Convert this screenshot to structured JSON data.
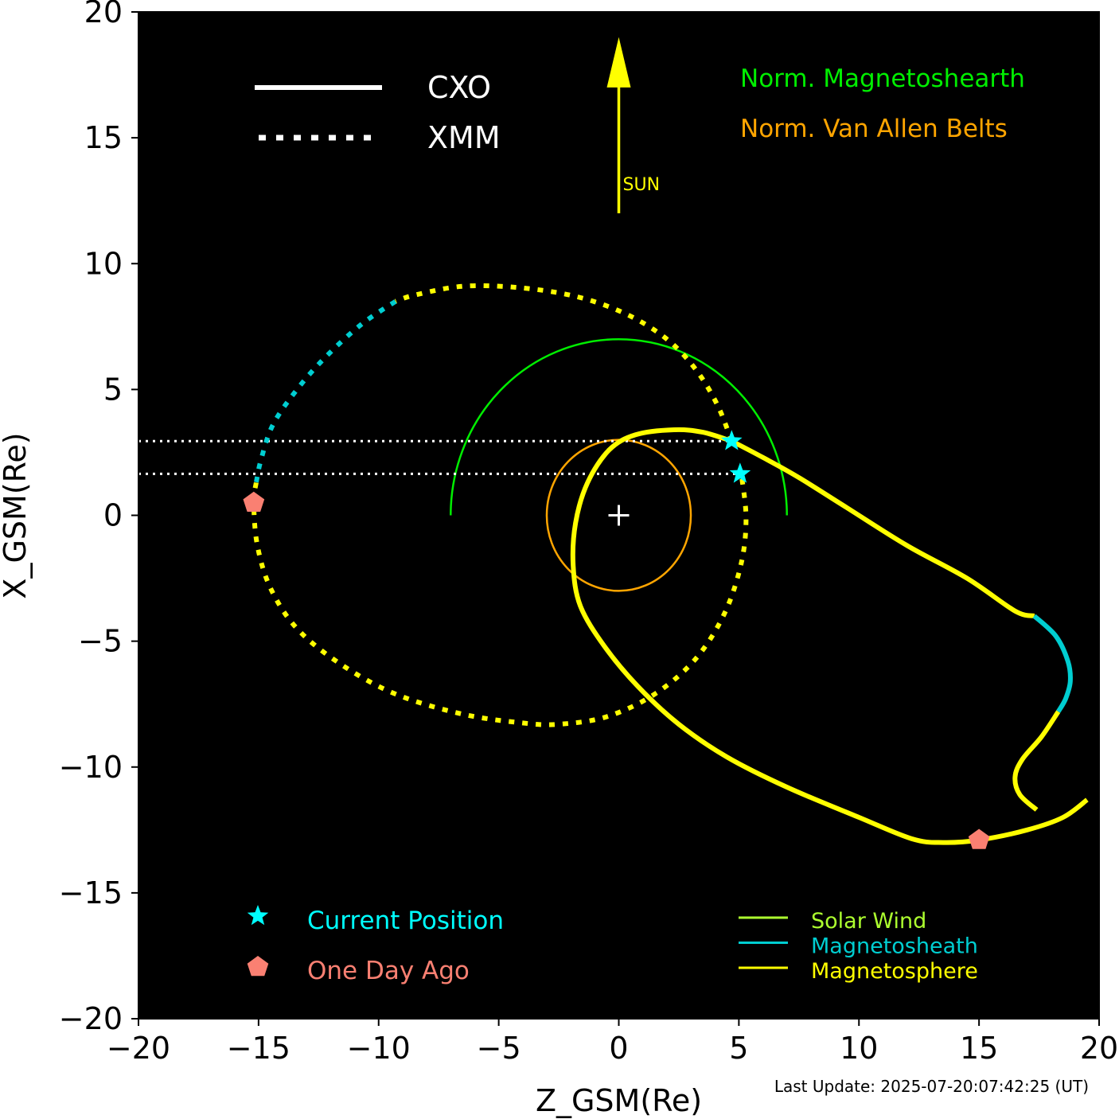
{
  "chart_data": {
    "type": "line",
    "xlabel": "Z_GSM(Re)",
    "ylabel": "X_GSM(Re)",
    "xlim": [
      -20,
      20
    ],
    "ylim": [
      -20,
      20
    ],
    "xticks": [
      -20,
      -15,
      -10,
      -5,
      0,
      5,
      10,
      15,
      20
    ],
    "yticks": [
      -20,
      -15,
      -10,
      -5,
      0,
      5,
      10,
      15,
      20
    ],
    "xtick_labels": [
      "−20",
      "−15",
      "−10",
      "−5",
      "0",
      "5",
      "10",
      "15",
      "20"
    ],
    "ytick_labels": [
      "−20",
      "−15",
      "−10",
      "−5",
      "0",
      "5",
      "10",
      "15",
      "20"
    ],
    "background": "#000000",
    "earth_marker": "+",
    "sun_label": "SUN",
    "sun_arrow": {
      "x": 0,
      "y_from": 12,
      "y_to": 18.5,
      "color": "#ffff00"
    },
    "line_style_legend": [
      {
        "label": "CXO",
        "style": "solid"
      },
      {
        "label": "XMM",
        "style": "dotted"
      }
    ],
    "norm_legend": [
      {
        "label": "Norm. Magnetoshearth",
        "color": "#00ee00"
      },
      {
        "label": "Norm. Van Allen Belts",
        "color": "#ffa500"
      }
    ],
    "marker_legend": [
      {
        "label": "Current Position",
        "marker": "star",
        "color": "#00ffff"
      },
      {
        "label": "One Day Ago",
        "marker": "pentagon",
        "color": "#fa8072"
      }
    ],
    "region_legend": [
      {
        "label": "Solar Wind",
        "color": "#adff2f"
      },
      {
        "label": "Magnetosheath",
        "color": "#00ced1"
      },
      {
        "label": "Magnetosphere",
        "color": "#ffff00"
      }
    ],
    "magnetosheath_radius": 7,
    "van_allen_radius": 3,
    "current_position_lines": [
      2.95,
      1.65
    ],
    "series": [
      {
        "name": "CXO",
        "style": "solid",
        "segments": [
          {
            "region": "Magnetosphere",
            "color": "#ffff00",
            "points": [
              [
                4.7,
                2.95
              ],
              [
                6,
                2.3
              ],
              [
                7.5,
                1.5
              ],
              [
                9.5,
                0.3
              ],
              [
                12,
                -1.2
              ],
              [
                14.5,
                -2.5
              ],
              [
                16.5,
                -3.8
              ],
              [
                17.3,
                -4.0
              ]
            ]
          },
          {
            "region": "Magnetosheath",
            "color": "#00ced1",
            "points": [
              [
                17.3,
                -4.0
              ],
              [
                18.2,
                -4.8
              ],
              [
                18.7,
                -5.8
              ],
              [
                18.8,
                -6.6
              ],
              [
                18.6,
                -7.3
              ],
              [
                18.3,
                -7.8
              ]
            ]
          },
          {
            "region": "Magnetosphere",
            "color": "#ffff00",
            "points": [
              [
                18.3,
                -7.8
              ],
              [
                17.6,
                -8.8
              ],
              [
                16.8,
                -9.7
              ],
              [
                16.5,
                -10.4
              ],
              [
                16.7,
                -11.1
              ],
              [
                17.4,
                -11.7
              ]
            ]
          },
          {
            "region": "Magnetosphere",
            "color": "#ffff00",
            "points": [
              [
                19.5,
                -11.3
              ],
              [
                18.5,
                -12.0
              ],
              [
                17,
                -12.5
              ],
              [
                15,
                -12.9
              ],
              [
                13.5,
                -13.0
              ],
              [
                12.2,
                -12.85
              ],
              [
                10,
                -12
              ],
              [
                7,
                -10.8
              ],
              [
                4.5,
                -9.6
              ],
              [
                2.5,
                -8.3
              ],
              [
                0.8,
                -6.8
              ],
              [
                -0.6,
                -5.2
              ],
              [
                -1.6,
                -3.6
              ],
              [
                -1.9,
                -2
              ],
              [
                -1.8,
                -0.3
              ],
              [
                -1.3,
                1.3
              ],
              [
                -0.4,
                2.6
              ],
              [
                0.7,
                3.2
              ],
              [
                2.3,
                3.4
              ],
              [
                3.5,
                3.3
              ],
              [
                4.7,
                2.95
              ]
            ]
          }
        ]
      },
      {
        "name": "XMM",
        "style": "dotted",
        "segments": [
          {
            "region": "Magnetosphere",
            "color": "#ffff00",
            "points": [
              [
                4.7,
                2.95
              ],
              [
                4.1,
                4.4
              ],
              [
                3.2,
                5.8
              ],
              [
                2.0,
                7.0
              ],
              [
                0.3,
                8.0
              ],
              [
                -1.8,
                8.7
              ],
              [
                -4.2,
                9.05
              ],
              [
                -6.5,
                9.1
              ],
              [
                -8.5,
                8.75
              ],
              [
                -9.3,
                8.5
              ]
            ]
          },
          {
            "region": "Magnetosheath",
            "color": "#00ced1",
            "points": [
              [
                -9.3,
                8.5
              ],
              [
                -10.7,
                7.6
              ],
              [
                -12.2,
                6.3
              ],
              [
                -13.4,
                5.0
              ],
              [
                -14.4,
                3.6
              ],
              [
                -14.9,
                2.2
              ],
              [
                -15.1,
                1.3
              ]
            ]
          },
          {
            "region": "Magnetosphere",
            "color": "#ffff00",
            "points": [
              [
                -15.1,
                1.3
              ],
              [
                -15.2,
                0.5
              ],
              [
                -15.05,
                -1.2
              ],
              [
                -14.5,
                -2.9
              ],
              [
                -13.4,
                -4.5
              ],
              [
                -11.6,
                -5.9
              ],
              [
                -9.3,
                -7.1
              ],
              [
                -6.5,
                -7.9
              ],
              [
                -4,
                -8.25
              ],
              [
                -2.5,
                -8.3
              ],
              [
                -0.5,
                -8.0
              ],
              [
                1.5,
                -7.1
              ],
              [
                3.2,
                -5.7
              ],
              [
                4.4,
                -3.9
              ],
              [
                5.1,
                -1.9
              ],
              [
                5.3,
                -0.1
              ],
              [
                5.1,
                1.65
              ]
            ]
          }
        ]
      }
    ],
    "current_positions": [
      {
        "series": "CXO",
        "x": 4.7,
        "y": 2.95
      },
      {
        "series": "XMM",
        "x": 5.05,
        "y": 1.65
      }
    ],
    "one_day_ago_positions": [
      {
        "series": "XMM",
        "x": -15.2,
        "y": 0.5
      },
      {
        "series": "CXO",
        "x": 15.0,
        "y": -12.9
      }
    ]
  },
  "footer": {
    "last_update": "Last Update: 2025-07-20:07:42:25 (UT)"
  }
}
